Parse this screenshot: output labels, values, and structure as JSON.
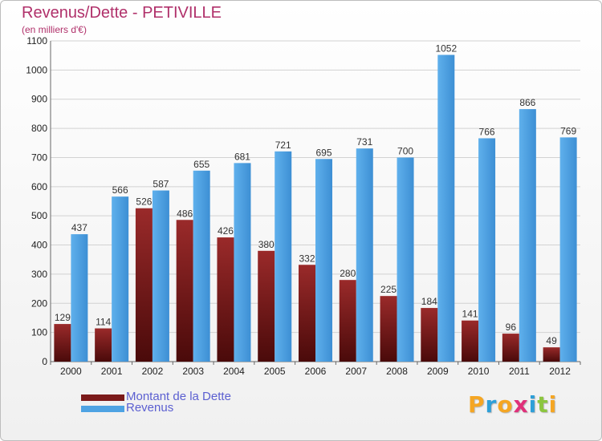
{
  "title": "Revenus/Dette - PETIVILLE",
  "subtitle": "(en milliers d'€)",
  "colors": {
    "dette": "#7b1a1a",
    "revenus": "#4ea3e3",
    "title": "#b0306a",
    "legend_text": "#5b5fd1"
  },
  "legend": [
    {
      "label": "Montant de la Dette",
      "color": "#7b1a1a"
    },
    {
      "label": "Revenus",
      "color": "#4ea3e3"
    }
  ],
  "logo": "Proxiti",
  "chart_data": {
    "type": "bar",
    "title": "Revenus/Dette - PETIVILLE",
    "subtitle": "(en milliers d'€)",
    "categories": [
      "2000",
      "2001",
      "2002",
      "2003",
      "2004",
      "2005",
      "2006",
      "2007",
      "2008",
      "2009",
      "2010",
      "2011",
      "2012"
    ],
    "series": [
      {
        "name": "Montant de la Dette",
        "values": [
          129,
          114,
          526,
          486,
          426,
          380,
          332,
          280,
          225,
          184,
          141,
          96,
          49
        ]
      },
      {
        "name": "Revenus",
        "values": [
          437,
          566,
          587,
          655,
          681,
          721,
          695,
          731,
          700,
          1052,
          766,
          866,
          769
        ]
      }
    ],
    "ylim": [
      0,
      1100
    ],
    "yticks": [
      0,
      100,
      200,
      300,
      400,
      500,
      600,
      700,
      800,
      900,
      1000,
      1100
    ],
    "grid": true,
    "legend_position": "bottom-left"
  }
}
